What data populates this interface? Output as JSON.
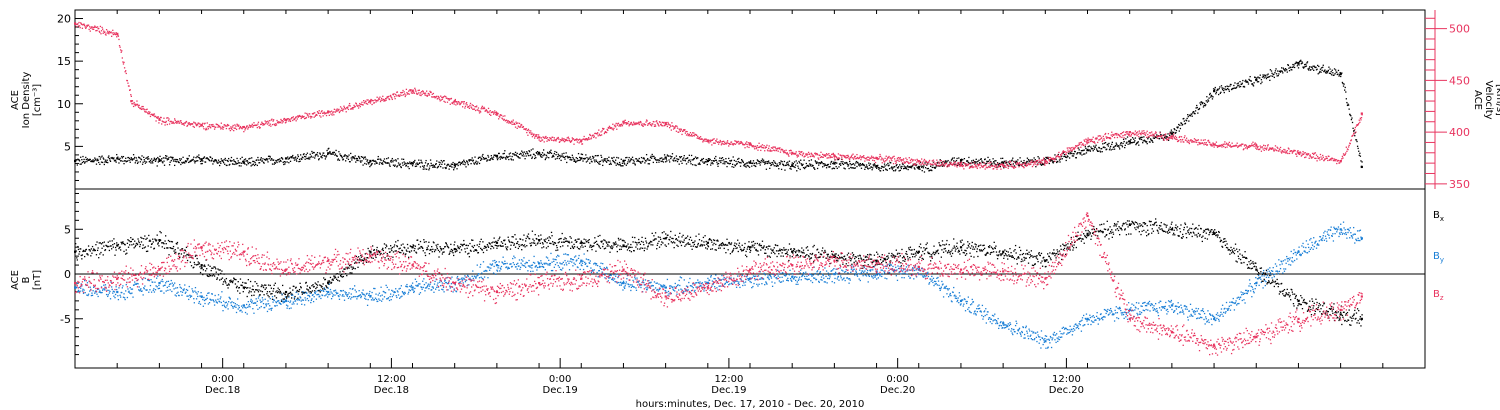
{
  "title": "",
  "colors": {
    "black": "#000000",
    "pink": "#e8345f",
    "blue": "#1a7fd6",
    "frame": "#000000"
  },
  "chart_data": [
    {
      "panel": "top",
      "type": "scatter",
      "ylabel_left": [
        "ACE",
        "Ion Density",
        "[cm⁻³]"
      ],
      "ylabel_right": [
        "ACE",
        "Velocity",
        "[km/s]"
      ],
      "ylim_left": [
        0,
        21
      ],
      "ylim_right": [
        345,
        518
      ],
      "left_ticks": [
        5,
        10,
        15,
        20
      ],
      "right_ticks": [
        350,
        400,
        450,
        500
      ],
      "series": [
        {
          "name": "",
          "axis": "left",
          "color": "black",
          "x": [
            0,
            3,
            6,
            9,
            12,
            15,
            18,
            21,
            24,
            27,
            30,
            33,
            36,
            39,
            42,
            45,
            48,
            51,
            54,
            57,
            60,
            63,
            66,
            69,
            72,
            75,
            78,
            81,
            84,
            87,
            90,
            91.5
          ],
          "y": [
            3.3,
            3.6,
            3.4,
            3.5,
            3.1,
            3.6,
            4.2,
            3.3,
            3.0,
            2.8,
            3.9,
            4.2,
            3.6,
            3.3,
            3.7,
            3.3,
            3.1,
            2.8,
            3.0,
            2.7,
            2.6,
            3.4,
            3.1,
            3.3,
            4.6,
            5.6,
            6.5,
            11.5,
            12.8,
            14.8,
            13.5,
            2.6
          ]
        },
        {
          "name": "",
          "axis": "right",
          "color": "pink",
          "x": [
            0,
            3,
            4,
            6,
            9,
            12,
            15,
            18,
            21,
            24,
            27,
            30,
            33,
            36,
            39,
            42,
            45,
            48,
            51,
            54,
            57,
            60,
            63,
            66,
            69,
            72,
            75,
            78,
            81,
            84,
            87,
            90,
            91.5
          ],
          "y": [
            505,
            495,
            430,
            412,
            407,
            405,
            412,
            420,
            430,
            440,
            430,
            418,
            395,
            392,
            410,
            408,
            392,
            388,
            380,
            377,
            375,
            372,
            368,
            368,
            372,
            392,
            400,
            396,
            388,
            387,
            380,
            372,
            418
          ]
        }
      ]
    },
    {
      "panel": "bottom",
      "type": "scatter",
      "ylabel_left": [
        "ACE",
        "B",
        "[nT]"
      ],
      "ylim": [
        -10.5,
        9.5
      ],
      "ticks": [
        -5,
        0,
        5
      ],
      "x_label": "hours:minutes, Dec. 17, 2010 - Dec. 20, 2010",
      "x_range": [
        0,
        96
      ],
      "x_ticks": [
        {
          "x": 10.5,
          "time": "0:00",
          "date": "Dec.18"
        },
        {
          "x": 22.5,
          "time": "12:00",
          "date": "Dec.18"
        },
        {
          "x": 34.5,
          "time": "0:00",
          "date": "Dec.19"
        },
        {
          "x": 46.5,
          "time": "12:00",
          "date": "Dec.19"
        },
        {
          "x": 58.5,
          "time": "0:00",
          "date": "Dec.20"
        },
        {
          "x": 70.5,
          "time": "12:00",
          "date": "Dec.20"
        }
      ],
      "series": [
        {
          "name": "B",
          "sub": "x",
          "color": "black",
          "x": [
            0,
            3,
            6,
            9,
            12,
            15,
            18,
            21,
            24,
            27,
            30,
            33,
            36,
            39,
            42,
            45,
            48,
            51,
            54,
            57,
            60,
            63,
            66,
            69,
            72,
            75,
            78,
            81,
            84,
            87,
            90,
            91.5
          ],
          "y": [
            2.5,
            3.2,
            3.8,
            1.0,
            -1.5,
            -2.0,
            -1.0,
            2.5,
            3.0,
            2.8,
            3.5,
            3.8,
            3.5,
            3.2,
            4.0,
            3.5,
            3.0,
            2.5,
            2.0,
            1.5,
            2.5,
            3.0,
            2.5,
            1.5,
            4.5,
            5.5,
            5.0,
            4.5,
            0.5,
            -3.0,
            -4.5,
            -5.0
          ]
        },
        {
          "name": "B",
          "sub": "y",
          "color": "blue",
          "x": [
            0,
            3,
            6,
            9,
            12,
            15,
            18,
            21,
            24,
            27,
            30,
            33,
            36,
            39,
            42,
            45,
            48,
            51,
            54,
            57,
            60,
            63,
            66,
            69,
            72,
            75,
            78,
            81,
            84,
            87,
            90,
            91.5
          ],
          "y": [
            -1.5,
            -2.0,
            -1.0,
            -2.5,
            -3.5,
            -3.0,
            -2.0,
            -2.5,
            -1.5,
            -1.0,
            1.0,
            1.2,
            1.5,
            -1.0,
            -1.5,
            -1.0,
            -0.5,
            -0.3,
            0.0,
            0.3,
            0.5,
            -3.0,
            -5.5,
            -7.5,
            -5.0,
            -4.0,
            -3.5,
            -5.0,
            -1.0,
            2.5,
            5.0,
            4.0
          ]
        },
        {
          "name": "B",
          "sub": "z",
          "color": "pink",
          "x": [
            0,
            3,
            6,
            9,
            12,
            15,
            18,
            21,
            24,
            27,
            30,
            33,
            36,
            39,
            42,
            45,
            48,
            51,
            54,
            57,
            60,
            63,
            66,
            69,
            72,
            75,
            78,
            81,
            84,
            87,
            90,
            91.5
          ],
          "y": [
            -1.0,
            -0.5,
            0.5,
            3.0,
            2.5,
            0.5,
            1.5,
            2.0,
            1.0,
            -1.0,
            -2.0,
            -1.0,
            -0.5,
            0.5,
            -2.5,
            -1.5,
            0.5,
            1.0,
            1.5,
            1.2,
            0.8,
            0.5,
            0.3,
            -0.5,
            6.5,
            -5.0,
            -6.5,
            -8.0,
            -7.0,
            -5.0,
            -4.0,
            -2.5
          ]
        }
      ]
    }
  ]
}
